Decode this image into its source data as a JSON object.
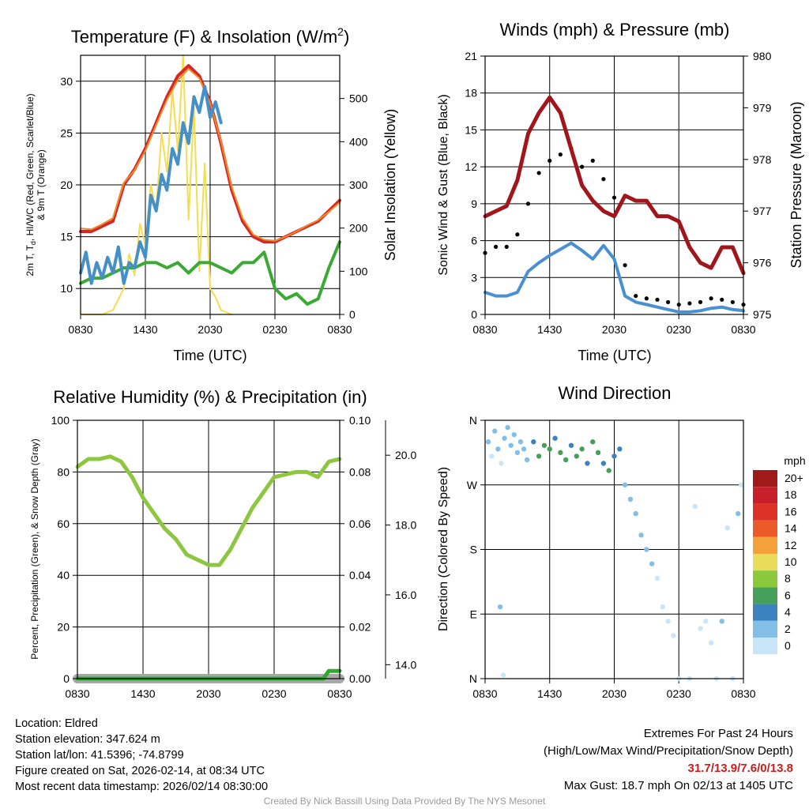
{
  "colors": {
    "temp": "#d62728",
    "dewpoint_green": "#3aaa35",
    "hiwc_blue": "#4690c8",
    "temp9m_orange": "#f08a24",
    "solar": "#f5dc50",
    "wind": "#4a90d0",
    "gust": "#000000",
    "pressure": "#a0161c",
    "rh": "#8dc63f",
    "precip": "#2eaa2e",
    "snow": "#a8a8a8",
    "extremes": "#c81e1e"
  },
  "chart_data": [
    {
      "id": "temperature",
      "type": "line",
      "title": "Temperature (F) & Insolation (W/m",
      "title_sup": "2",
      "title_end": ")",
      "xlabel": "Time (UTC)",
      "ylabel_lines": [
        "2m T, T",
        "d",
        ", HI/WC (Red, Green, Scarlet/Blue)",
        "& 9m T (Orange)"
      ],
      "ylabel2": "Solar Insolation (Yellow)",
      "xlim": [
        0,
        24
      ],
      "xticks": [
        0,
        6,
        12,
        18,
        24
      ],
      "xticklabels": [
        "0830",
        "1430",
        "2030",
        "0230",
        "0830"
      ],
      "ylim": [
        7.5,
        32.5
      ],
      "yticks": [
        10,
        15,
        20,
        25,
        30
      ],
      "ylim2": [
        0,
        600
      ],
      "yticks2": [
        0,
        100,
        200,
        300,
        400,
        500
      ],
      "series": [
        {
          "name": "2m T",
          "color": "#d62728",
          "width": 4,
          "x": [
            0,
            1,
            2,
            3,
            4,
            5,
            6,
            7,
            8,
            9,
            10,
            11,
            12,
            13,
            14,
            15,
            16,
            17,
            18,
            19,
            20,
            21,
            22,
            23,
            24
          ],
          "y": [
            15.5,
            15.5,
            16.0,
            16.5,
            20.0,
            21.5,
            23.5,
            26.0,
            28.5,
            30.5,
            31.5,
            30.5,
            28.0,
            24.0,
            19.5,
            16.5,
            15.0,
            14.5,
            14.5,
            15.0,
            15.5,
            16.0,
            16.5,
            17.5,
            18.5
          ]
        },
        {
          "name": "9m T",
          "color": "#f08a24",
          "width": 2,
          "x": [
            0,
            1,
            2,
            3,
            4,
            5,
            6,
            7,
            8,
            9,
            10,
            11,
            12,
            13,
            14,
            15,
            16,
            17,
            18,
            19,
            20,
            21,
            22,
            23,
            24
          ],
          "y": [
            15.8,
            15.7,
            16.2,
            16.8,
            20.2,
            21.4,
            23.3,
            25.8,
            28.2,
            30.1,
            31.2,
            30.3,
            27.9,
            24.2,
            19.8,
            16.8,
            15.2,
            14.7,
            14.6,
            15.0,
            15.5,
            16.1,
            16.6,
            17.4,
            18.3
          ]
        },
        {
          "name": "Td",
          "color": "#3aaa35",
          "width": 4,
          "x": [
            0,
            1,
            2,
            3,
            4,
            5,
            6,
            7,
            8,
            9,
            10,
            11,
            12,
            13,
            14,
            15,
            16,
            17,
            18,
            19,
            20,
            21,
            22,
            23,
            24
          ],
          "y": [
            10.5,
            11.0,
            11.0,
            11.5,
            12.0,
            12.0,
            12.5,
            12.5,
            12.0,
            12.5,
            11.5,
            12.5,
            12.5,
            12.0,
            11.5,
            12.5,
            12.5,
            13.5,
            10.0,
            9.0,
            9.5,
            8.5,
            9.0,
            12.0,
            14.5
          ]
        },
        {
          "name": "HI/WC",
          "color": "#4690c8",
          "width": 4,
          "x": [
            0,
            0.5,
            1,
            1.5,
            2,
            2.5,
            3,
            3.5,
            4,
            4.5,
            5,
            5.5,
            6,
            6.5,
            7,
            7.5,
            8,
            8.5,
            9,
            9.5,
            10,
            10.5,
            11,
            11.5,
            12,
            12.5,
            13
          ],
          "y": [
            11.5,
            13.5,
            10.5,
            12.5,
            11.0,
            13.0,
            11.5,
            14.0,
            10.5,
            12.5,
            12.0,
            14.5,
            13.0,
            19.0,
            17.5,
            21.0,
            19.5,
            23.5,
            22.0,
            26.0,
            24.0,
            28.5,
            27.0,
            29.5,
            26.5,
            28.0,
            26.0
          ]
        }
      ],
      "solar": {
        "name": "Solar Insolation",
        "color": "#f5dc50",
        "x": [
          0,
          2,
          3,
          4,
          4.5,
          5,
          5.5,
          6,
          6.5,
          7,
          7.5,
          8,
          8.5,
          9,
          9.5,
          10,
          10.5,
          11,
          11.5,
          12,
          12.5,
          13,
          14
        ],
        "y": [
          0,
          0,
          10,
          60,
          140,
          90,
          210,
          160,
          300,
          240,
          420,
          330,
          520,
          380,
          600,
          220,
          480,
          100,
          350,
          60,
          40,
          10,
          0
        ]
      }
    },
    {
      "id": "winds",
      "type": "line",
      "title": "Winds (mph) & Pressure (mb)",
      "xlabel": "Time (UTC)",
      "ylabel": "Sonic Wind & Gust (Blue, Black)",
      "ylabel2": "Station Pressure (Maroon)",
      "xlim": [
        0,
        24
      ],
      "xticks": [
        0,
        6,
        12,
        18,
        24
      ],
      "xticklabels": [
        "0830",
        "1430",
        "2030",
        "0230",
        "0830"
      ],
      "ylim": [
        0,
        21
      ],
      "yticks": [
        0,
        3,
        6,
        9,
        12,
        15,
        18,
        21
      ],
      "ylim2": [
        975,
        980
      ],
      "yticks2": [
        975,
        976,
        977,
        978,
        979,
        980
      ],
      "wind": {
        "name": "Sonic Wind",
        "color": "#4a90d0",
        "x": [
          0,
          1,
          2,
          3,
          4,
          5,
          6,
          7,
          8,
          9,
          10,
          11,
          12,
          13,
          14,
          15,
          16,
          17,
          18,
          19,
          20,
          21,
          22,
          23,
          24
        ],
        "y": [
          1.8,
          1.5,
          1.5,
          1.8,
          3.5,
          4.2,
          4.8,
          5.3,
          5.8,
          5.2,
          4.5,
          5.6,
          4.5,
          1.5,
          1.0,
          0.8,
          0.6,
          0.4,
          0.2,
          0.2,
          0.3,
          0.5,
          0.6,
          0.4,
          0.3
        ]
      },
      "gust": {
        "name": "Gust",
        "color": "#000000",
        "x": [
          0,
          1,
          2,
          3,
          4,
          5,
          6,
          7,
          8,
          9,
          10,
          11,
          12,
          13,
          14,
          15,
          16,
          17,
          18,
          19,
          20,
          21,
          22,
          23,
          24
        ],
        "y": [
          5.0,
          5.5,
          5.5,
          6.5,
          9.0,
          11.5,
          12.5,
          13.0,
          13.5,
          12.0,
          12.5,
          11.0,
          9.5,
          4.0,
          1.5,
          1.3,
          1.2,
          1.0,
          0.8,
          0.9,
          1.0,
          1.3,
          1.2,
          1.0,
          0.8
        ]
      },
      "pressure": {
        "name": "Station Pressure",
        "color": "#a0161c",
        "x": [
          0,
          1,
          2,
          3,
          4,
          5,
          6,
          7,
          8,
          9,
          10,
          11,
          12,
          13,
          14,
          15,
          16,
          17,
          18,
          19,
          20,
          21,
          22,
          23,
          24
        ],
        "y": [
          976.9,
          977.0,
          977.1,
          977.6,
          978.5,
          978.9,
          979.2,
          978.9,
          978.2,
          977.5,
          977.2,
          977.0,
          976.9,
          977.3,
          977.2,
          977.2,
          976.9,
          976.9,
          976.8,
          976.3,
          976.0,
          975.9,
          976.3,
          976.3,
          975.8
        ]
      }
    },
    {
      "id": "humidity",
      "type": "line",
      "title": "Relative Humidity (%) & Precipitation (in)",
      "ylabel": "Percent, Precipitation (Green), & Snow Depth (Gray)",
      "xlim": [
        0,
        24
      ],
      "xticks": [
        0,
        6,
        12,
        18,
        24
      ],
      "xticklabels": [
        "0830",
        "1430",
        "2030",
        "0230",
        "0830"
      ],
      "ylim": [
        0,
        100
      ],
      "yticks": [
        0,
        20,
        40,
        60,
        80,
        100
      ],
      "ylim2": [
        0,
        0.1
      ],
      "yticks2": [
        "0.00",
        "0.02",
        "0.04",
        "0.06",
        "0.08",
        "0.10"
      ],
      "ylim3": [
        13.6,
        21.0
      ],
      "yticks3": [
        "14.0",
        "16.0",
        "18.0",
        "20.0"
      ],
      "rh": {
        "name": "Relative Humidity",
        "color": "#8dc63f",
        "x": [
          0,
          1,
          2,
          3,
          4,
          5,
          6,
          7,
          8,
          9,
          10,
          11,
          12,
          13,
          14,
          15,
          16,
          17,
          18,
          19,
          20,
          21,
          22,
          23,
          24
        ],
        "y": [
          82,
          85,
          85,
          86,
          84,
          78,
          70,
          64,
          58,
          54,
          48,
          46,
          44,
          44,
          50,
          58,
          66,
          72,
          78,
          79,
          80,
          80,
          78,
          84,
          85
        ]
      },
      "precip": {
        "name": "Precipitation",
        "color": "#2eaa2e",
        "x": [
          0,
          22.5,
          23,
          24
        ],
        "y": [
          0.0,
          0.0,
          0.003,
          0.003
        ]
      },
      "snow": {
        "name": "Snow Depth",
        "color": "#a8a8a8",
        "x": [
          0,
          24
        ],
        "y": [
          13.6,
          13.6
        ]
      }
    },
    {
      "id": "direction",
      "type": "scatter",
      "title": "Wind Direction",
      "ylabel": "Direction (Colored By Speed)",
      "xlim": [
        0,
        24
      ],
      "xticks": [
        0,
        6,
        12,
        18,
        24
      ],
      "xticklabels": [
        "0830",
        "1430",
        "2030",
        "0230",
        "0830"
      ],
      "ylim": [
        0,
        360
      ],
      "yticks": [
        0,
        90,
        180,
        270,
        360
      ],
      "yticklabels": [
        "N",
        "E",
        "S",
        "W",
        "N"
      ],
      "colorbar_title": "mph",
      "colorbar_labels": [
        "20+",
        "18",
        "16",
        "14",
        "12",
        "10",
        "8",
        "6",
        "4",
        "2",
        "0"
      ],
      "colorbar_colors": [
        "#a01a1a",
        "#c8202a",
        "#dc3228",
        "#ec5a2a",
        "#f6a03c",
        "#e8dc5a",
        "#8cc83c",
        "#46a05a",
        "#3c82c0",
        "#82bee6",
        "#c8e6f8"
      ],
      "points": [
        {
          "x": 0.3,
          "y": 330,
          "s": 1
        },
        {
          "x": 0.6,
          "y": 310,
          "s": 0.5
        },
        {
          "x": 0.9,
          "y": 345,
          "s": 1
        },
        {
          "x": 1.2,
          "y": 320,
          "s": 1.5
        },
        {
          "x": 1.5,
          "y": 300,
          "s": 0.5
        },
        {
          "x": 1.8,
          "y": 335,
          "s": 1
        },
        {
          "x": 2.1,
          "y": 350,
          "s": 1.5
        },
        {
          "x": 2.4,
          "y": 325,
          "s": 1
        },
        {
          "x": 1.4,
          "y": 100,
          "s": 1
        },
        {
          "x": 1.7,
          "y": 5,
          "s": 0.5
        },
        {
          "x": 2.7,
          "y": 340,
          "s": 2
        },
        {
          "x": 3.0,
          "y": 315,
          "s": 1.5
        },
        {
          "x": 3.3,
          "y": 330,
          "s": 1
        },
        {
          "x": 3.6,
          "y": 320,
          "s": 1.5
        },
        {
          "x": 3.9,
          "y": 305,
          "s": 1
        },
        {
          "x": 4.5,
          "y": 330,
          "s": 3
        },
        {
          "x": 5.0,
          "y": 310,
          "s": 5
        },
        {
          "x": 5.5,
          "y": 325,
          "s": 6
        },
        {
          "x": 6.0,
          "y": 320,
          "s": 5
        },
        {
          "x": 6.5,
          "y": 335,
          "s": 4
        },
        {
          "x": 7.0,
          "y": 315,
          "s": 6
        },
        {
          "x": 7.5,
          "y": 305,
          "s": 5
        },
        {
          "x": 8.0,
          "y": 325,
          "s": 4
        },
        {
          "x": 8.5,
          "y": 310,
          "s": 6
        },
        {
          "x": 9.0,
          "y": 320,
          "s": 5
        },
        {
          "x": 9.5,
          "y": 300,
          "s": 4
        },
        {
          "x": 10.0,
          "y": 330,
          "s": 6
        },
        {
          "x": 10.5,
          "y": 315,
          "s": 5
        },
        {
          "x": 11.0,
          "y": 300,
          "s": 4
        },
        {
          "x": 11.5,
          "y": 290,
          "s": 5
        },
        {
          "x": 12.0,
          "y": 310,
          "s": 4
        },
        {
          "x": 12.5,
          "y": 320,
          "s": 3
        },
        {
          "x": 13.0,
          "y": 270,
          "s": 2
        },
        {
          "x": 13.5,
          "y": 250,
          "s": 1
        },
        {
          "x": 14.0,
          "y": 230,
          "s": 1
        },
        {
          "x": 14.5,
          "y": 200,
          "s": 1
        },
        {
          "x": 15.0,
          "y": 180,
          "s": 1
        },
        {
          "x": 15.5,
          "y": 160,
          "s": 1
        },
        {
          "x": 16.0,
          "y": 140,
          "s": 0.5
        },
        {
          "x": 16.5,
          "y": 100,
          "s": 0.5
        },
        {
          "x": 17.0,
          "y": 80,
          "s": 0.5
        },
        {
          "x": 17.5,
          "y": 60,
          "s": 0.5
        },
        {
          "x": 18.0,
          "y": 0,
          "s": 0.5
        },
        {
          "x": 19.0,
          "y": 0,
          "s": 0.5
        },
        {
          "x": 19.5,
          "y": 240,
          "s": 0.5
        },
        {
          "x": 20.0,
          "y": 70,
          "s": 0.5
        },
        {
          "x": 20.5,
          "y": 80,
          "s": 0.5
        },
        {
          "x": 21.0,
          "y": 50,
          "s": 0.5
        },
        {
          "x": 21.5,
          "y": 0,
          "s": 0.5
        },
        {
          "x": 22.0,
          "y": 80,
          "s": 1
        },
        {
          "x": 22.5,
          "y": 210,
          "s": 0.5
        },
        {
          "x": 23.0,
          "y": 0,
          "s": 0.5
        },
        {
          "x": 23.5,
          "y": 230,
          "s": 1
        },
        {
          "x": 23.8,
          "y": 270,
          "s": 0.5
        }
      ]
    }
  ],
  "info": {
    "location": "Location: Eldred",
    "elevation": "Station elevation: 347.624 m",
    "latlon": "Station lat/lon: 41.5396; -74.8799",
    "created": "Figure created on Sat, 2026-02-14, at 08:34 UTC",
    "recent": "Most recent data timestamp: 2026/02/14 08:30:00"
  },
  "extremes": {
    "title": "Extremes For Past 24 Hours",
    "subtitle": "(High/Low/Max Wind/Precipitation/Snow Depth)",
    "values": "31.7/13.9/7.6/0/13.8",
    "max_gust": "Max Gust: 18.7 mph On 02/13 at 1405 UTC"
  },
  "credit": "Created By Nick Bassill Using Data Provided By The NYS Mesonet"
}
